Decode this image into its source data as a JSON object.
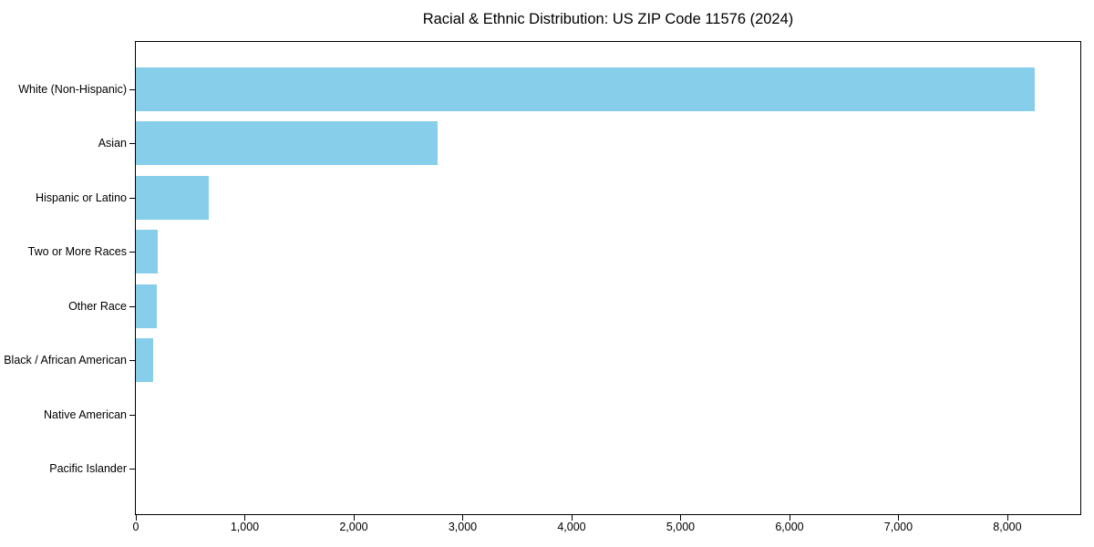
{
  "chart_data": {
    "type": "bar",
    "orientation": "horizontal",
    "title": "Racial & Ethnic Distribution: US ZIP Code 11576 (2024)",
    "categories": [
      "White (Non-Hispanic)",
      "Asian",
      "Hispanic or Latino",
      "Two or More Races",
      "Other Race",
      "Black / African American",
      "Native American",
      "Pacific Islander"
    ],
    "values": [
      8250,
      2770,
      670,
      200,
      190,
      160,
      0,
      0
    ],
    "bar_color": "#87CEEB",
    "xlabel": "",
    "ylabel": "",
    "xlim": [
      0,
      8670
    ],
    "x_ticks": [
      0,
      1000,
      2000,
      3000,
      4000,
      5000,
      6000,
      7000,
      8000
    ],
    "x_tick_labels": [
      "0",
      "1,000",
      "2,000",
      "3,000",
      "4,000",
      "5,000",
      "6,000",
      "7,000",
      "8,000"
    ],
    "grid": false,
    "legend": "none",
    "plot_border_color": "#000000",
    "background_color": "#ffffff"
  }
}
